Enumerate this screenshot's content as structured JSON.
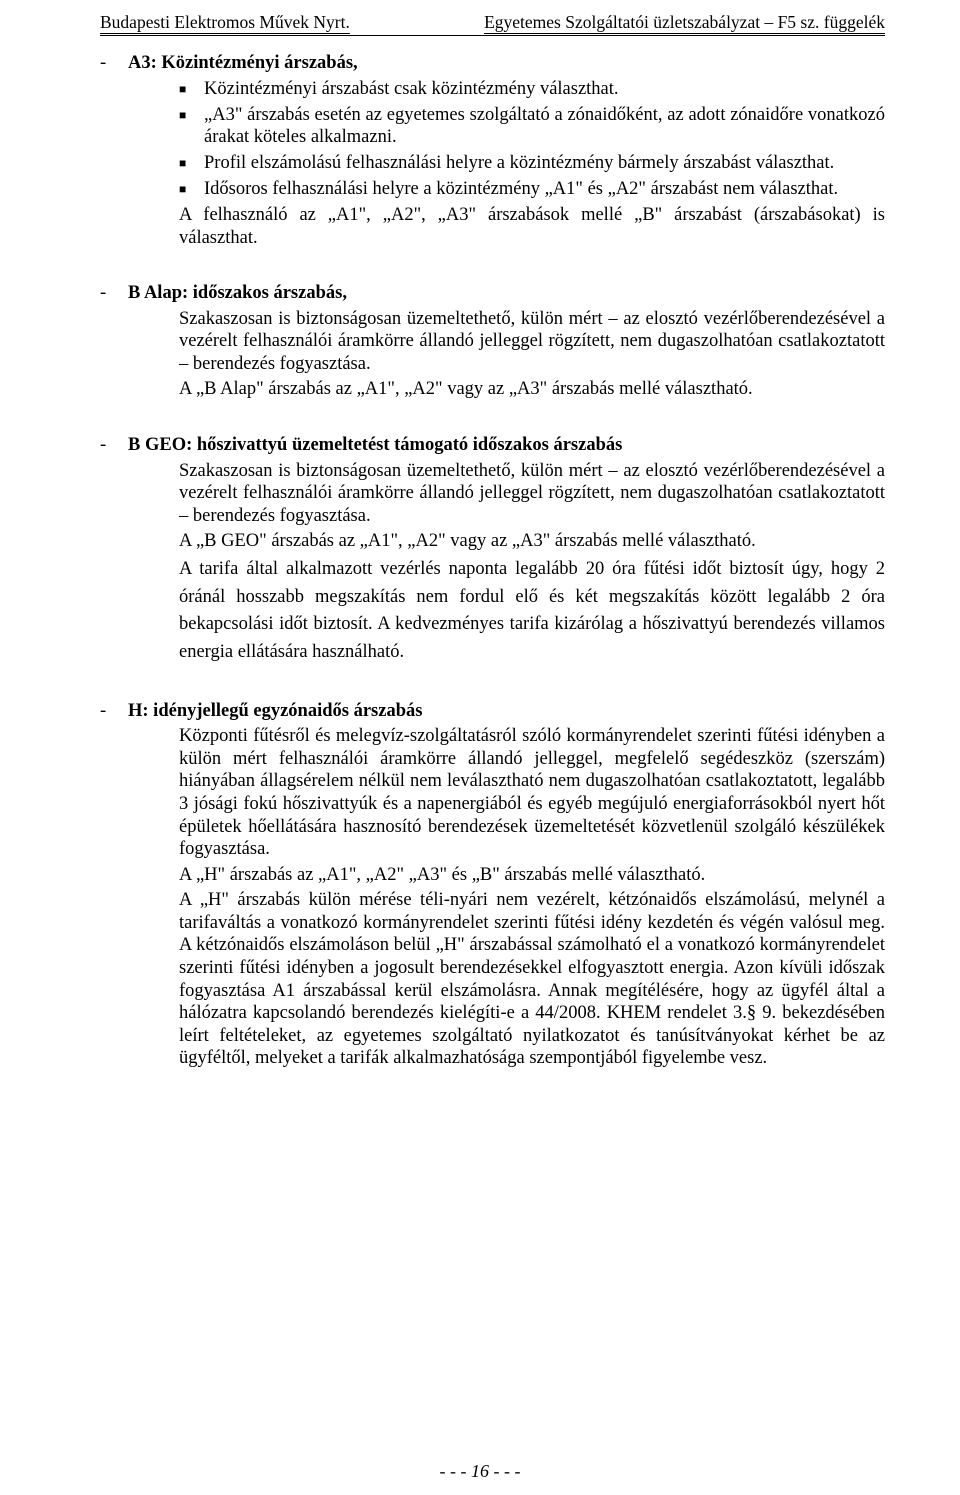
{
  "header": {
    "left": "Budapesti Elektromos Művek Nyrt.",
    "right": "Egyetemes Szolgáltatói üzletszabályzat – F5 sz. függelék"
  },
  "sections": {
    "a3": {
      "title": "A3: Közintézményi árszabás,",
      "b1": "Közintézményi árszabást csak közintézmény választhat.",
      "b2": "„A3\" árszabás esetén az egyetemes szolgáltató a zónaidőként, az adott zónaidőre vonatkozó árakat köteles alkalmazni.",
      "b3": "Profil elszámolású felhasználási helyre a közintézmény bármely árszabást választhat.",
      "b4": "Idősoros felhasználási helyre a közintézmény „A1\" és „A2\" árszabást nem választhat.",
      "p1": "A felhasználó az „A1\", „A2\", „A3\" árszabások mellé „B\" árszabást (árszabásokat) is választhat."
    },
    "balap": {
      "title": "B Alap: időszakos árszabás,",
      "p1": "Szakaszosan is biztonságosan üzemeltethető, külön mért – az elosztó vezérlőberendezésével a vezérelt felhasználói áramkörre állandó jelleggel rögzített, nem dugaszolhatóan csatlakoztatott – berendezés fogyasztása.",
      "p2": "A „B Alap\" árszabás az „A1\", „A2\" vagy az „A3\" árszabás mellé választható."
    },
    "bgeo": {
      "title": "B GEO: hőszivattyú üzemeltetést támogató időszakos árszabás",
      "p1": "Szakaszosan is biztonságosan üzemeltethető, külön mért – az elosztó vezérlőberendezésével a vezérelt felhasználói áramkörre állandó jelleggel rögzített, nem dugaszolhatóan csatlakoztatott – berendezés fogyasztása.",
      "p2": "A „B GEO\" árszabás az „A1\", „A2\" vagy az „A3\" árszabás mellé választható.",
      "p3": "A tarifa által alkalmazott vezérlés naponta legalább 20 óra fűtési időt biztosít úgy, hogy 2 óránál hosszabb megszakítás nem fordul elő és két megszakítás között legalább 2 óra bekapcsolási időt biztosít. A kedvezményes tarifa kizárólag a hőszivattyú berendezés villamos energia ellátására használható."
    },
    "h": {
      "title": "H: idényjellegű egyzónaidős árszabás",
      "p1": "Központi fűtésről és melegvíz-szolgáltatásról szóló kormányrendelet szerinti fűtési idényben a külön mért felhasználói áramkörre állandó jelleggel, megfelelő segédeszköz (szerszám) hiányában állagsérelem nélkül nem leválasztható nem dugaszolhatóan csatlakoztatott, legalább 3 jósági fokú hőszivattyúk és a napenergiából és egyéb megújuló energiaforrásokból nyert hőt épületek hőellátására hasznosító berendezések üzemeltetését közvetlenül szolgáló készülékek fogyasztása.",
      "p2": "A „H\" árszabás az „A1\", „A2\" „A3\" és „B\" árszabás mellé választható.",
      "p3": "A „H\" árszabás külön mérése téli-nyári nem vezérelt, kétzónaidős elszámolású, melynél a tarifaváltás a vonatkozó kormányrendelet szerinti fűtési idény kezdetén és végén valósul meg. A kétzónaidős elszámoláson belül „H\" árszabással számolható el a vonatkozó kormányrendelet szerinti fűtési idényben a jogosult berendezésekkel elfogyasztott energia. Azon kívüli időszak fogyasztása A1 árszabással kerül elszámolásra. Annak megítélésére, hogy az ügyfél által a hálózatra kapcsolandó berendezés kielégíti-e a 44/2008. KHEM rendelet 3.§ 9. bekezdésében leírt feltételeket, az egyetemes szolgáltató nyilatkozatot és tanúsítványokat kérhet be az ügyféltől, melyeket a tarifák alkalmazhatósága szempontjából figyelembe vesz."
    }
  },
  "footer": "- - - 16 - - -",
  "glyphs": {
    "square": "■"
  }
}
